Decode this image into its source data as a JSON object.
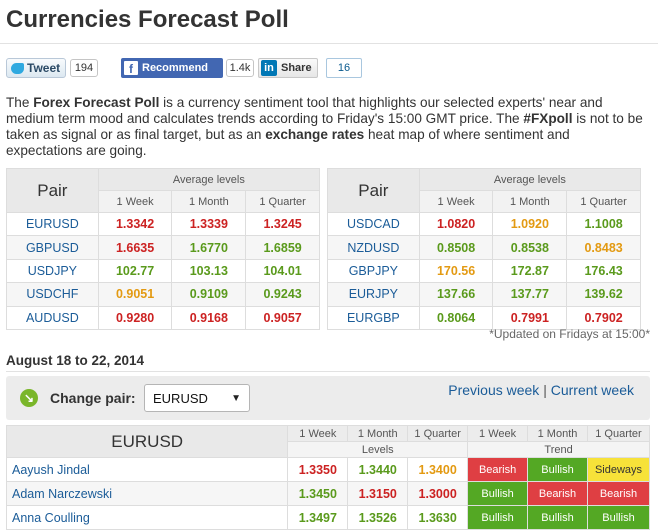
{
  "page": {
    "title": "Currencies Forecast Poll"
  },
  "social": {
    "tweet_label": "Tweet",
    "tweet_count": "194",
    "recommend_label": "Recommend",
    "recommend_count": "1.4k",
    "share_label": "Share",
    "share_count": "16"
  },
  "intro": {
    "p1": "The ",
    "b1": "Forex Forecast Poll",
    "p2": " is a currency sentiment tool that highlights our selected experts' near and medium term mood and calculates trends according to Friday's 15:00 GMT price. The ",
    "b2": "#FXpoll",
    "p3": " is not to be taken as signal or as final target, but as an ",
    "b3": "exchange rates",
    "p4": " heat map of where sentiment and expectations are going."
  },
  "averages": {
    "pair_header": "Pair",
    "levels_header": "Average levels",
    "columns": [
      "1 Week",
      "1 Month",
      "1 Quarter"
    ],
    "left": [
      {
        "pair": "EURUSD",
        "values": [
          "1.3342",
          "1.3339",
          "1.3245"
        ],
        "trend": [
          "dn",
          "dn",
          "dn"
        ]
      },
      {
        "pair": "GBPUSD",
        "values": [
          "1.6635",
          "1.6770",
          "1.6859"
        ],
        "trend": [
          "dn",
          "up",
          "up"
        ]
      },
      {
        "pair": "USDJPY",
        "values": [
          "102.77",
          "103.13",
          "104.01"
        ],
        "trend": [
          "up",
          "up",
          "up"
        ]
      },
      {
        "pair": "USDCHF",
        "values": [
          "0.9051",
          "0.9109",
          "0.9243"
        ],
        "trend": [
          "nt",
          "up",
          "up"
        ]
      },
      {
        "pair": "AUDUSD",
        "values": [
          "0.9280",
          "0.9168",
          "0.9057"
        ],
        "trend": [
          "dn",
          "dn",
          "dn"
        ]
      }
    ],
    "right": [
      {
        "pair": "USDCAD",
        "values": [
          "1.0820",
          "1.0920",
          "1.1008"
        ],
        "trend": [
          "dn",
          "nt",
          "up"
        ]
      },
      {
        "pair": "NZDUSD",
        "values": [
          "0.8508",
          "0.8538",
          "0.8483"
        ],
        "trend": [
          "up",
          "up",
          "nt"
        ]
      },
      {
        "pair": "GBPJPY",
        "values": [
          "170.56",
          "172.87",
          "176.43"
        ],
        "trend": [
          "nt",
          "up",
          "up"
        ]
      },
      {
        "pair": "EURJPY",
        "values": [
          "137.66",
          "137.77",
          "139.62"
        ],
        "trend": [
          "up",
          "up",
          "up"
        ]
      },
      {
        "pair": "EURGBP",
        "values": [
          "0.8064",
          "0.7991",
          "0.7902"
        ],
        "trend": [
          "up",
          "dn",
          "dn"
        ]
      }
    ],
    "updated_note": "*Updated on Fridays at 15:00*"
  },
  "week": {
    "title": "August 18 to 22, 2014",
    "change_pair_label": "Change pair:",
    "selected_pair": "EURUSD",
    "previous_week": "Previous week",
    "separator": "|",
    "current_week": "Current week"
  },
  "poll": {
    "pair": "EURUSD",
    "columns": [
      "1 Week",
      "1 Month",
      "1 Quarter"
    ],
    "levels_label": "Levels",
    "trend_label": "Trend",
    "rows": [
      {
        "name": "Aayush Jindal",
        "levels": [
          "1.3350",
          "1.3440",
          "1.3400"
        ],
        "level_trend": [
          "dn",
          "up",
          "nt"
        ],
        "trend": [
          "Bearish",
          "Bullish",
          "Sideways"
        ]
      },
      {
        "name": "Adam Narczewski",
        "levels": [
          "1.3450",
          "1.3150",
          "1.3000"
        ],
        "level_trend": [
          "up",
          "dn",
          "dn"
        ],
        "trend": [
          "Bullish",
          "Bearish",
          "Bearish"
        ]
      },
      {
        "name": "Anna Coulling",
        "levels": [
          "1.3497",
          "1.3526",
          "1.3630"
        ],
        "level_trend": [
          "up",
          "up",
          "up"
        ],
        "trend": [
          "Bullish",
          "Bullish",
          "Bullish"
        ]
      }
    ]
  },
  "colors": {
    "bullish": "#54a824",
    "bearish": "#df3f43",
    "sideways": "#f7e239",
    "up_text": "#5a9a1c",
    "down_text": "#cc2222",
    "neutral_text": "#e39a12",
    "link": "#1b5c98"
  }
}
